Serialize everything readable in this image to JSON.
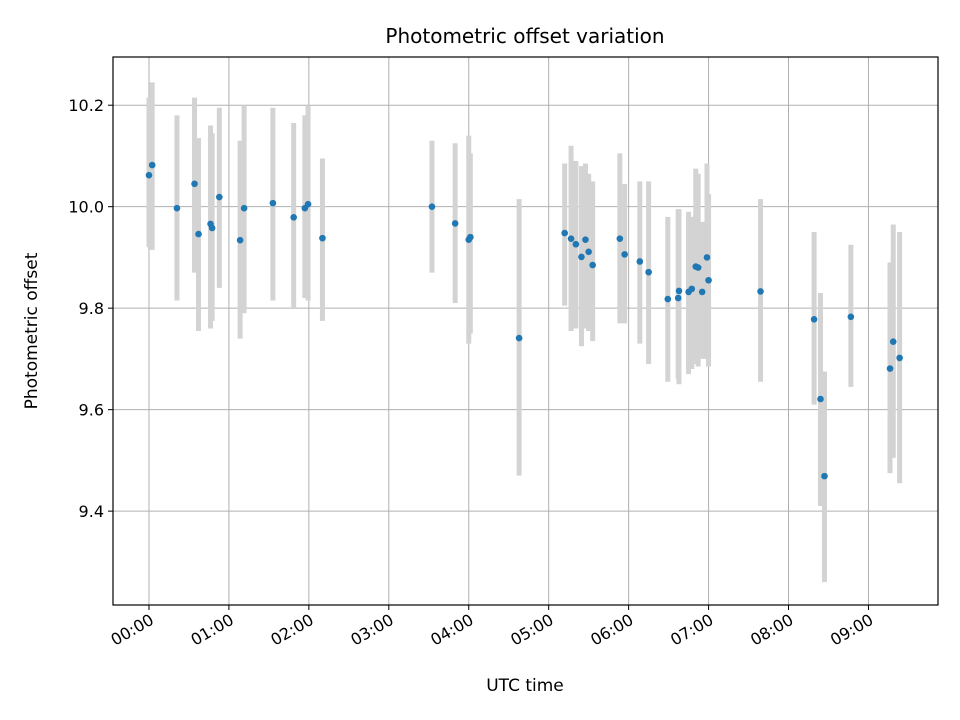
{
  "chart_data": {
    "type": "scatter",
    "title": "Photometric offset variation",
    "xlabel": "UTC time",
    "ylabel": "Photometric offset",
    "xlim": [
      -0.45,
      9.87
    ],
    "ylim": [
      9.215,
      10.295
    ],
    "grid": true,
    "x_ticks": [
      0,
      1,
      2,
      3,
      4,
      5,
      6,
      7,
      8,
      9
    ],
    "x_tick_labels": [
      "00:00",
      "01:00",
      "02:00",
      "03:00",
      "04:00",
      "05:00",
      "06:00",
      "07:00",
      "08:00",
      "09:00"
    ],
    "y_ticks": [
      9.4,
      9.6,
      9.8,
      10.0,
      10.2
    ],
    "y_tick_labels": [
      "9.4",
      "9.6",
      "9.8",
      "10.0",
      "10.2"
    ],
    "colors": {
      "point": "#1f77b4",
      "errorbar": "#d3d3d3",
      "grid": "#b0b0b0"
    },
    "series": [
      {
        "name": "offset",
        "x": [
          0.0,
          0.04,
          0.35,
          0.57,
          0.62,
          0.77,
          0.79,
          0.88,
          1.14,
          1.19,
          1.55,
          1.81,
          1.95,
          1.99,
          2.17,
          3.54,
          3.83,
          4.0,
          4.02,
          4.63,
          5.2,
          5.28,
          5.34,
          5.41,
          5.46,
          5.5,
          5.55,
          5.89,
          5.95,
          6.14,
          6.25,
          6.49,
          6.62,
          6.63,
          6.75,
          6.79,
          6.84,
          6.87,
          6.92,
          6.98,
          7.0,
          7.65,
          8.32,
          8.4,
          8.45,
          8.78,
          9.27,
          9.31,
          9.39
        ],
        "y": [
          10.062,
          10.082,
          9.997,
          10.045,
          9.946,
          9.966,
          9.958,
          10.019,
          9.934,
          9.997,
          10.007,
          9.979,
          9.997,
          10.005,
          9.938,
          10.0,
          9.967,
          9.935,
          9.94,
          9.741,
          9.948,
          9.937,
          9.926,
          9.901,
          9.935,
          9.911,
          9.885,
          9.937,
          9.906,
          9.892,
          9.871,
          9.818,
          9.82,
          9.834,
          9.832,
          9.838,
          9.882,
          9.88,
          9.832,
          9.9,
          9.855,
          9.833,
          9.778,
          9.621,
          9.469,
          9.783,
          9.681,
          9.734,
          9.702
        ],
        "err_low": [
          9.92,
          9.915,
          9.815,
          9.87,
          9.755,
          9.76,
          9.775,
          9.84,
          9.74,
          9.79,
          9.815,
          9.8,
          9.82,
          9.815,
          9.775,
          9.87,
          9.81,
          9.73,
          9.75,
          9.47,
          9.805,
          9.755,
          9.76,
          9.725,
          9.76,
          9.755,
          9.735,
          9.77,
          9.77,
          9.73,
          9.69,
          9.655,
          9.66,
          9.65,
          9.67,
          9.68,
          9.69,
          9.685,
          9.7,
          9.7,
          9.685,
          9.655,
          9.61,
          9.41,
          9.26,
          9.645,
          9.475,
          9.505,
          9.455
        ],
        "err_high": [
          10.215,
          10.245,
          10.18,
          10.215,
          10.135,
          10.16,
          10.145,
          10.195,
          10.13,
          10.2,
          10.195,
          10.165,
          10.18,
          10.2,
          10.095,
          10.13,
          10.125,
          10.14,
          10.105,
          10.015,
          10.085,
          10.12,
          10.09,
          10.08,
          10.085,
          10.065,
          10.05,
          10.105,
          10.045,
          10.05,
          10.05,
          9.98,
          9.995,
          9.995,
          9.99,
          9.98,
          10.075,
          10.065,
          9.97,
          10.085,
          10.025,
          10.015,
          9.95,
          9.83,
          9.675,
          9.925,
          9.89,
          9.965,
          9.95
        ]
      }
    ]
  }
}
